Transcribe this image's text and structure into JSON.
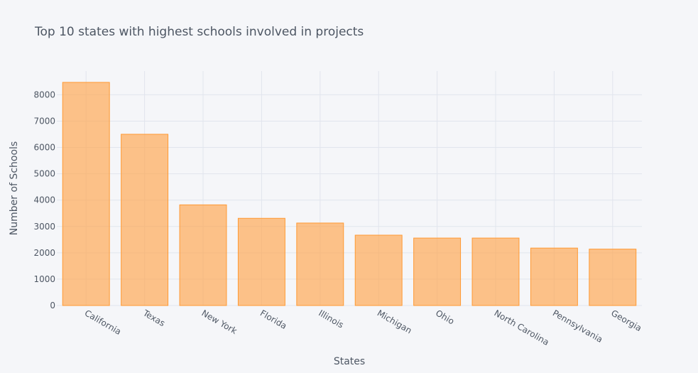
{
  "chart_data": {
    "type": "bar",
    "title": "Top 10 states with highest schools involved in projects",
    "xlabel": "States",
    "ylabel": "Number of Schools",
    "categories": [
      "California",
      "Texas",
      "New York",
      "Florida",
      "Illinois",
      "Michigan",
      "Ohio",
      "North Carolina",
      "Pennsylvania",
      "Georgia"
    ],
    "values": [
      8470,
      6500,
      3820,
      3310,
      3130,
      2670,
      2560,
      2560,
      2180,
      2140
    ],
    "ylim": [
      0,
      8900
    ],
    "yticks": [
      "0",
      "1000",
      "2000",
      "3000",
      "4000",
      "5000",
      "6000",
      "7000",
      "8000"
    ],
    "grid": true,
    "legend": "none",
    "colors": {
      "bar_fill": "#ffa54c",
      "bar_stroke": "#ff9933",
      "background": "#f5f6f9",
      "grid": "#e1e5ed",
      "text": "#4d5663"
    }
  }
}
